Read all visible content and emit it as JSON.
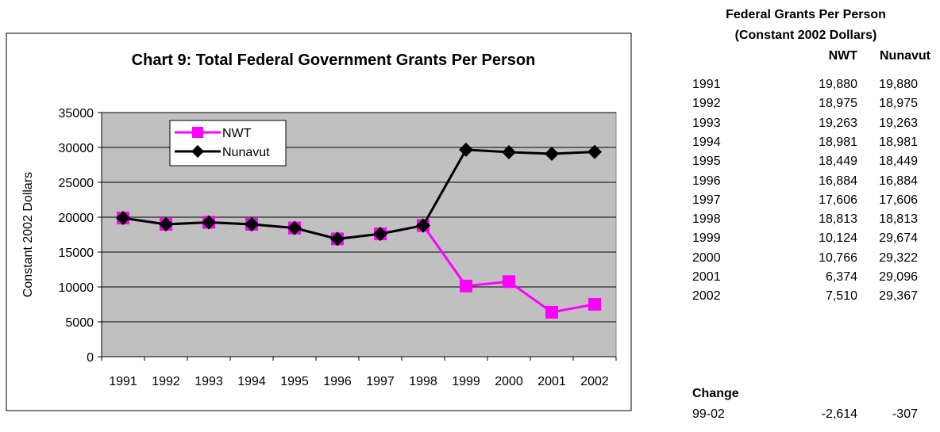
{
  "chart_data": {
    "type": "line",
    "title": "Chart 9: Total Federal Government Grants Per Person",
    "xlabel": "",
    "ylabel": "Constant 2002 Dollars",
    "categories": [
      "1991",
      "1992",
      "1993",
      "1994",
      "1995",
      "1996",
      "1997",
      "1998",
      "1999",
      "2000",
      "2001",
      "2002"
    ],
    "yticks": [
      "0",
      "5000",
      "10000",
      "15000",
      "20000",
      "25000",
      "30000",
      "35000"
    ],
    "ylim": [
      0,
      35000
    ],
    "grid": true,
    "legend": "top-left",
    "series": [
      {
        "name": "NWT",
        "color": "#ff00ff",
        "marker": "square",
        "values": [
          19880,
          18975,
          19263,
          18981,
          18449,
          16884,
          17606,
          18813,
          10124,
          10766,
          6374,
          7510
        ]
      },
      {
        "name": "Nunavut",
        "color": "#000000",
        "marker": "diamond",
        "values": [
          19880,
          18975,
          19263,
          18981,
          18449,
          16884,
          17606,
          18813,
          29674,
          29322,
          29096,
          29367
        ]
      }
    ],
    "plot_background": "#c0c0c0"
  },
  "table": {
    "title_line1": "Federal Grants Per Person",
    "title_line2": "(Constant 2002 Dollars)",
    "col_nwt": "NWT",
    "col_nunavut": "Nunavut",
    "rows": [
      {
        "year": "1991",
        "nwt": "19,880",
        "nunavut": "19,880"
      },
      {
        "year": "1992",
        "nwt": "18,975",
        "nunavut": "18,975"
      },
      {
        "year": "1993",
        "nwt": "19,263",
        "nunavut": "19,263"
      },
      {
        "year": "1994",
        "nwt": "18,981",
        "nunavut": "18,981"
      },
      {
        "year": "1995",
        "nwt": "18,449",
        "nunavut": "18,449"
      },
      {
        "year": "1996",
        "nwt": "16,884",
        "nunavut": "16,884"
      },
      {
        "year": "1997",
        "nwt": "17,606",
        "nunavut": "17,606"
      },
      {
        "year": "1998",
        "nwt": "18,813",
        "nunavut": "18,813"
      },
      {
        "year": "1999",
        "nwt": "10,124",
        "nunavut": "29,674"
      },
      {
        "year": "2000",
        "nwt": "10,766",
        "nunavut": "29,322"
      },
      {
        "year": "2001",
        "nwt": "6,374",
        "nunavut": "29,096"
      },
      {
        "year": "2002",
        "nwt": "7,510",
        "nunavut": "29,367"
      }
    ],
    "change_label": "Change",
    "change_row": {
      "period": "99-02",
      "nwt": "-2,614",
      "nunavut": "-307"
    }
  }
}
